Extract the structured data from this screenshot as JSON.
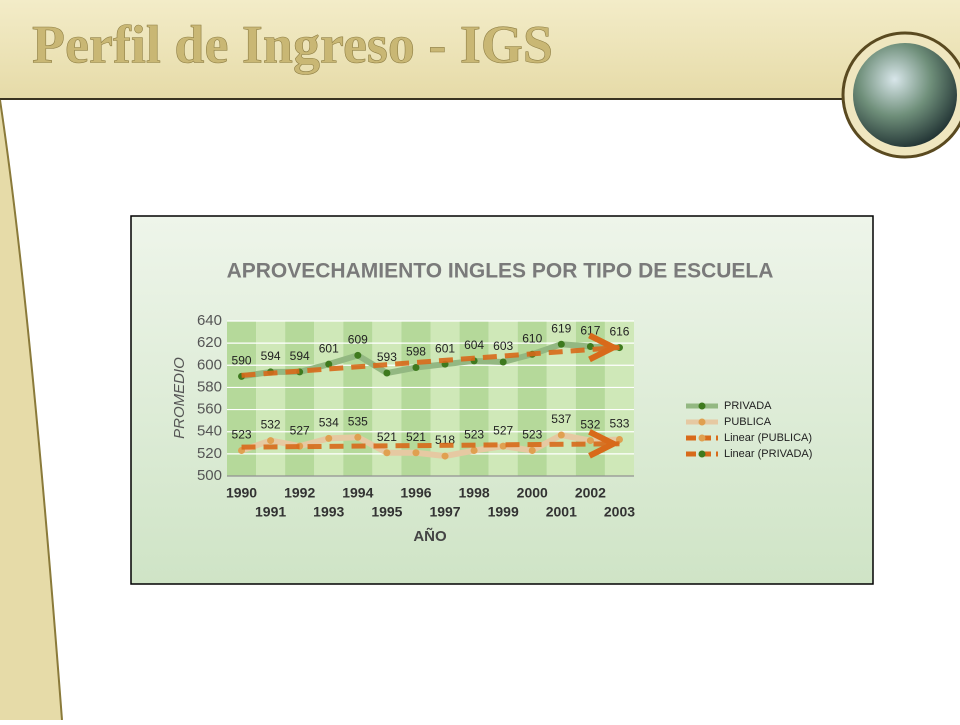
{
  "slide": {
    "title": "Perfil de Ingreso - IGS"
  },
  "chart_data": {
    "type": "line",
    "title": "APROVECHAMIENTO INGLES POR TIPO DE ESCUELA",
    "x_label": "AÑO",
    "y_label": "PROMEDIO",
    "categories": [
      "1990",
      "1991",
      "1992",
      "1993",
      "1994",
      "1995",
      "1996",
      "1997",
      "1998",
      "1999",
      "2000",
      "2001",
      "2002",
      "2003"
    ],
    "series": [
      {
        "name": "PRIVADA",
        "color": "#3e7a1e",
        "values": [
          590,
          594,
          594,
          601,
          609,
          593,
          598,
          601,
          604,
          603,
          610,
          619,
          617,
          616
        ]
      },
      {
        "name": "PUBLICA",
        "color": "#e0a050",
        "values": [
          523,
          532,
          527,
          534,
          535,
          521,
          521,
          518,
          523,
          527,
          523,
          537,
          532,
          533
        ]
      }
    ],
    "trendlines": [
      {
        "name": "Linear (PUBLICA)",
        "series": 1,
        "color": "#d86a1a"
      },
      {
        "name": "Linear (PRIVADA)",
        "series": 0,
        "color": "#d86a1a"
      }
    ],
    "ylim": [
      500,
      640
    ],
    "yticks": [
      500,
      520,
      540,
      560,
      580,
      600,
      620,
      640
    ],
    "grid": true
  }
}
